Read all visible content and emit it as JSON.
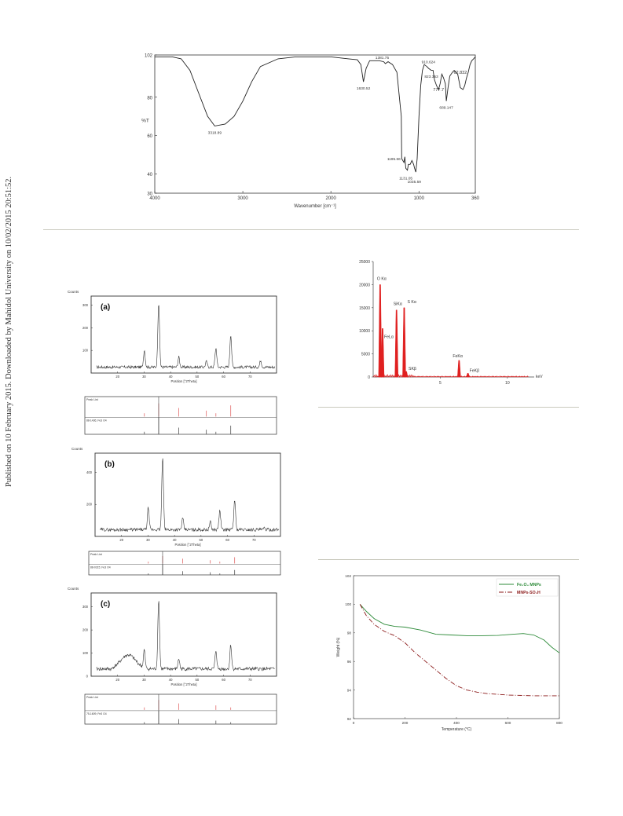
{
  "sidebar": {
    "text": "Published on 10 February 2015. Downloaded by Mahidol University on 10/02/2015 20:51:52."
  },
  "chart_data": [
    {
      "id": "ftir",
      "type": "line",
      "xlabel": "Wavenumber [cm⁻¹]",
      "ylabel": "%T",
      "xlim": [
        4000,
        360
      ],
      "ylim": [
        30,
        102
      ],
      "x_ticks": [
        "4000",
        "3000",
        "2000",
        "1000",
        "360"
      ],
      "y_ticks": [
        "102",
        "80",
        "60",
        "40",
        "30"
      ],
      "series": [
        {
          "x": [
            4000,
            3900,
            3800,
            3700,
            3600,
            3500,
            3400,
            3318.89,
            3200,
            3100,
            3000,
            2900,
            2800,
            2600,
            2400,
            2200,
            2000,
            1900,
            1800,
            1700,
            1660,
            1630.52,
            1600,
            1560,
            1500,
            1450,
            1400,
            1381.75,
            1350,
            1300,
            1250,
            1200,
            1195.66,
            1170,
            1160,
            1150,
            1131.05,
            1120,
            1100,
            1080,
            1060,
            1050,
            1035.59,
            1020,
            1000,
            980,
            960,
            940,
            910.624,
            890,
            860,
            840,
            823.353,
            800,
            777.7,
            760,
            740,
            720,
            700,
            689.147,
            670,
            650,
            620,
            600,
            560,
            530,
            500,
            480,
            460,
            440,
            420,
            400,
            380,
            360
          ],
          "y": [
            101,
            101,
            101,
            100,
            94,
            82,
            70,
            65,
            66,
            70,
            78,
            88,
            96,
            100,
            101,
            101,
            101,
            100.5,
            100,
            99.5,
            97,
            88,
            95,
            99,
            99,
            99,
            98.5,
            97.5,
            98.5,
            97,
            93,
            70,
            48,
            46,
            49,
            43,
            42,
            45,
            45,
            47,
            45,
            43,
            41,
            48,
            70,
            86,
            94,
            97,
            96,
            95,
            94,
            94,
            89,
            86,
            84,
            87,
            92,
            90,
            87,
            78,
            85,
            91,
            93,
            94,
            92,
            85,
            84,
            86,
            90,
            93,
            97,
            99,
            100,
            101
          ]
        }
      ],
      "annotations": [
        {
          "label": "3318.89",
          "x": 3318.89
        },
        {
          "label": "1630.52",
          "x": 1630.52
        },
        {
          "label": "1381.75",
          "x": 1381.75
        },
        {
          "label": "1195.66",
          "x": 1195.66
        },
        {
          "label": "1131.05",
          "x": 1131.05
        },
        {
          "label": "1035.59",
          "x": 1035.59
        },
        {
          "label": "910.624",
          "x": 910.624
        },
        {
          "label": "823.353",
          "x": 823.353
        },
        {
          "label": "777.7",
          "x": 777.7
        },
        {
          "label": "689.147",
          "x": 689.147
        },
        {
          "label": "62.832",
          "x": 620
        }
      ]
    },
    {
      "id": "edx",
      "type": "bar",
      "xlabel": "keV",
      "xlim": [
        0,
        12
      ],
      "ylim": [
        0,
        25000
      ],
      "x_ticks": [
        "5",
        "10"
      ],
      "y_ticks": [
        "25000",
        "20000",
        "15000",
        "10000",
        "5000",
        "0"
      ],
      "color": "#e02020",
      "peaks": [
        {
          "label": "O Kα",
          "x": 0.52,
          "y": 20000
        },
        {
          "label": "FeLα",
          "x": 0.7,
          "y": 10500
        },
        {
          "label": "SiKα",
          "x": 1.74,
          "y": 14500
        },
        {
          "label": "S Kα",
          "x": 2.31,
          "y": 15000
        },
        {
          "label": "SKβ",
          "x": 2.46,
          "y": 1200
        },
        {
          "label": "FeKα",
          "x": 6.4,
          "y": 3600
        },
        {
          "label": "FeKβ",
          "x": 7.06,
          "y": 800
        }
      ]
    },
    {
      "id": "xrd-a",
      "type": "line",
      "panel_label": "(a)",
      "ylabel": "Counts",
      "xlabel": "Position [°2Theta]",
      "xlim": [
        10,
        80
      ],
      "ylim": [
        0,
        340
      ],
      "x_ticks": [
        "20",
        "30",
        "40",
        "50",
        "60",
        "70"
      ],
      "y_ticks": [
        "300",
        "200",
        "100"
      ],
      "peaks": [
        {
          "x": 30.1,
          "y": 100
        },
        {
          "x": 35.5,
          "y": 310
        },
        {
          "x": 43.1,
          "y": 70
        },
        {
          "x": 53.5,
          "y": 50
        },
        {
          "x": 57.1,
          "y": 110
        },
        {
          "x": 62.7,
          "y": 170
        },
        {
          "x": 74.0,
          "y": 55
        }
      ],
      "baseline": 25,
      "peak_list_title": "Peak List",
      "reference_label": "88-1436; Fe3 O4",
      "reference_lines": [
        30.1,
        35.5,
        43.1,
        53.5,
        57.1,
        62.7
      ]
    },
    {
      "id": "xrd-b",
      "type": "line",
      "panel_label": "(b)",
      "ylabel": "Counts",
      "xlabel": "Position [°2Theta]",
      "xlim": [
        10,
        80
      ],
      "ylim": [
        0,
        520
      ],
      "x_ticks": [
        "20",
        "30",
        "40",
        "50",
        "60",
        "70"
      ],
      "y_ticks": [
        "400",
        "200"
      ],
      "peaks": [
        {
          "x": 30.1,
          "y": 180
        },
        {
          "x": 35.5,
          "y": 490
        },
        {
          "x": 43.1,
          "y": 110
        },
        {
          "x": 53.5,
          "y": 90
        },
        {
          "x": 57.1,
          "y": 160
        },
        {
          "x": 62.7,
          "y": 230
        },
        {
          "x": 74.0,
          "y": 50
        }
      ],
      "baseline": 40,
      "peak_list_title": "Peak List",
      "reference_label": "88-0315; Fe3 O4",
      "reference_lines": [
        30.1,
        35.5,
        43.1,
        53.5,
        57.1,
        62.7
      ]
    },
    {
      "id": "xrd-c",
      "type": "line",
      "panel_label": "(c)",
      "ylabel": "Counts",
      "xlabel": "Position [°2Theta]",
      "xlim": [
        10,
        80
      ],
      "ylim": [
        0,
        360
      ],
      "x_ticks": [
        "20",
        "30",
        "40",
        "50",
        "60",
        "70"
      ],
      "y_ticks": [
        "300",
        "200",
        "100",
        "0"
      ],
      "peaks": [
        {
          "x": 30.1,
          "y": 110
        },
        {
          "x": 35.5,
          "y": 330
        },
        {
          "x": 43.1,
          "y": 75
        },
        {
          "x": 57.1,
          "y": 110
        },
        {
          "x": 62.7,
          "y": 135
        }
      ],
      "baseline": 30,
      "peak_list_title": "Peak List",
      "reference_label": "75-1609; Fe3 O4",
      "reference_lines": [
        30.1,
        35.5,
        43.1,
        57.1,
        62.7
      ]
    },
    {
      "id": "tga",
      "type": "line",
      "xlabel": "Temperature (°C)",
      "ylabel": "Weight (%)",
      "xlim": [
        0,
        800
      ],
      "ylim": [
        92,
        102
      ],
      "x_ticks": [
        "0",
        "200",
        "400",
        "600",
        "800"
      ],
      "y_ticks": [
        "102",
        "100",
        "98",
        "96",
        "94",
        "92"
      ],
      "series": [
        {
          "name": "Fe₃O₄ MNPs",
          "color": "#2e8b3a",
          "x": [
            25,
            50,
            80,
            120,
            160,
            200,
            260,
            320,
            380,
            440,
            500,
            560,
            620,
            660,
            700,
            740,
            770,
            800
          ],
          "y": [
            100,
            99.5,
            99.0,
            98.6,
            98.45,
            98.4,
            98.2,
            97.9,
            97.85,
            97.8,
            97.8,
            97.82,
            97.9,
            97.95,
            97.85,
            97.5,
            97.0,
            96.6
          ]
        },
        {
          "name": "MNPs-SO₃H",
          "color": "#8b1a1a",
          "x": [
            25,
            50,
            80,
            120,
            160,
            200,
            240,
            280,
            320,
            360,
            400,
            440,
            480,
            520,
            560,
            600,
            700,
            800
          ],
          "y": [
            100,
            99.2,
            98.6,
            98.1,
            97.8,
            97.3,
            96.6,
            96.0,
            95.4,
            94.8,
            94.3,
            94.0,
            93.85,
            93.75,
            93.7,
            93.65,
            93.6,
            93.6
          ]
        }
      ]
    }
  ]
}
